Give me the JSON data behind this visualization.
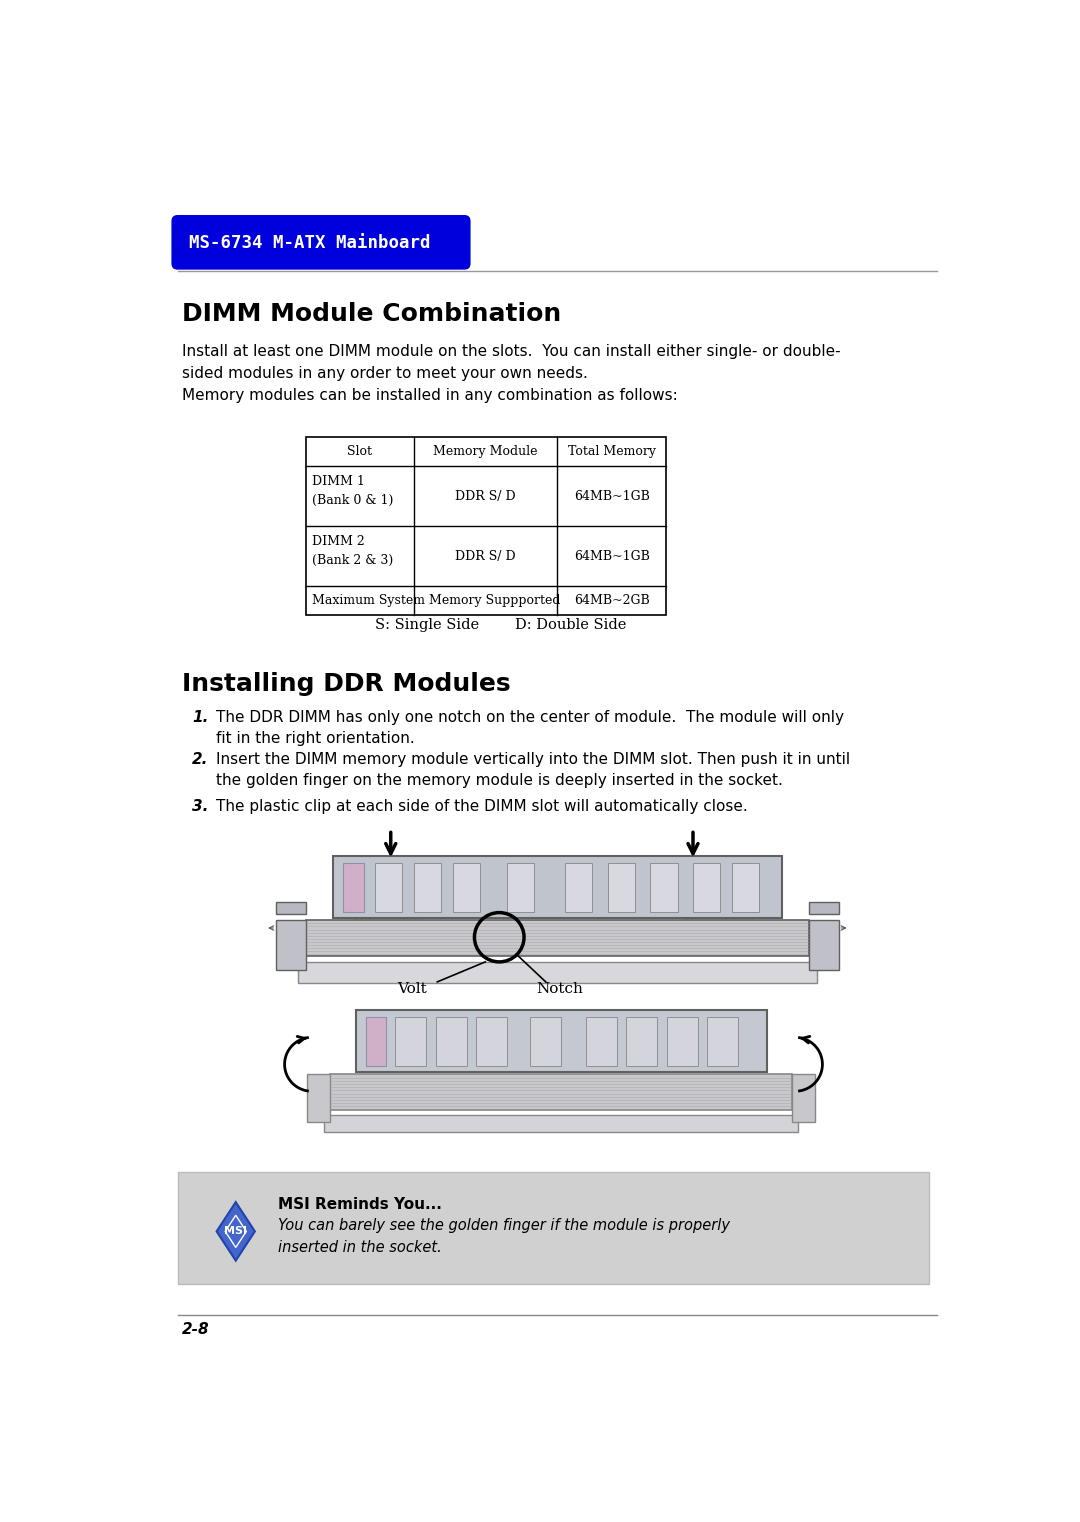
{
  "page_bg": "#ffffff",
  "header_bg": "#0000dd",
  "header_text": "MS-6734 M-ATX Mainboard",
  "header_text_color": "#ffffff",
  "section1_title": "DIMM Module Combination",
  "section1_body1": "Install at least one DIMM module on the slots.  You can install either single- or double-\nsided modules in any order to meet your own needs.\nMemory modules can be installed in any combination as follows:",
  "table_headers": [
    "Slot",
    "Memory Module",
    "Total Memory"
  ],
  "table_rows": [
    [
      "DIMM 1\n(Bank 0 & 1)",
      "DDR S/ D",
      "64MB~1GB"
    ],
    [
      "DIMM 2\n(Bank 2 & 3)",
      "DDR S/ D",
      "64MB~1GB"
    ],
    [
      "Maximum System Memory Suppported",
      "",
      "64MB~2GB"
    ]
  ],
  "table_note_left": "S: Single Side",
  "table_note_right": "D: Double Side",
  "section2_title": "Installing DDR Modules",
  "list_item1_num": "1.",
  "list_item1": "The DDR DIMM has only one notch on the center of module.  The module will only\nfit in the right orientation.",
  "list_item2_num": "2.",
  "list_item2": "Insert the DIMM memory module vertically into the DIMM slot. Then push it in until\nthe golden finger on the memory module is deeply inserted in the socket.",
  "list_item3_num": "3.",
  "list_item3": "The plastic clip at each side of the DIMM slot will automatically close.",
  "volt_label": "Volt",
  "notch_label": "Notch",
  "reminder_title": "MSI Reminds You...",
  "reminder_body": "You can barely see the golden finger if the module is properly\ninserted in the socket.",
  "footer_text": "2-8",
  "hand_color": "#f5d5a0",
  "hand_edge": "#c8a060",
  "module_color": "#c0c4cc",
  "module_border": "#606060",
  "chip_color": "#d8d8e0",
  "chip_border": "#909090",
  "pink_chip_color": "#d0b0c8",
  "pink_chip_border": "#9090aa",
  "slot_color": "#c8c8cc",
  "slot_border": "#606060",
  "latch_color": "#c0c0c8",
  "latch_border": "#606060",
  "reminder_bg": "#d0d0d0",
  "msi_diamond_color": "#4466cc",
  "msi_diamond_border": "#2244aa",
  "arrow_color": "#000000",
  "line_color": "#999999"
}
